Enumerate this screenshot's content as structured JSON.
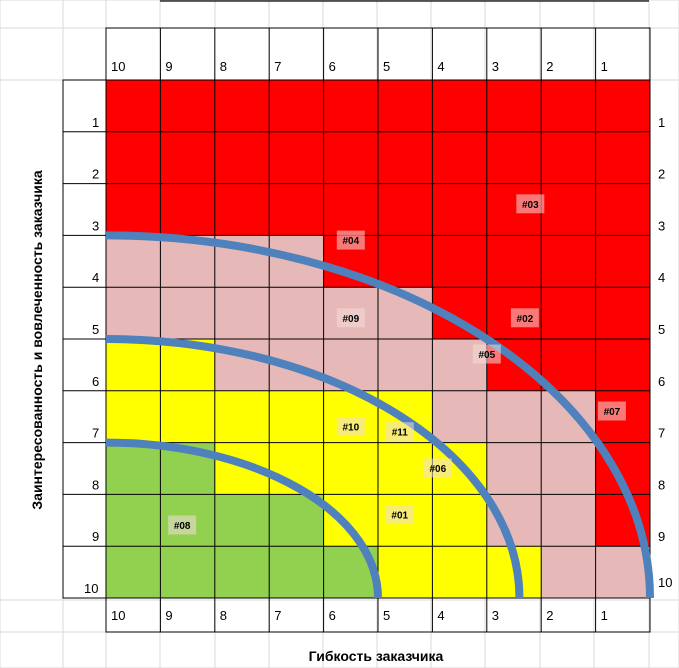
{
  "chart_data": {
    "type": "heatmap",
    "title": "",
    "xlabel": "Гибкость заказчика",
    "ylabel": "Заинтересованность и вовлеченность заказчика",
    "x_ticks": [
      "10",
      "9",
      "8",
      "7",
      "6",
      "5",
      "4",
      "3",
      "2",
      "1"
    ],
    "y_ticks": [
      "1",
      "2",
      "3",
      "4",
      "5",
      "6",
      "7",
      "8",
      "9",
      "10"
    ],
    "colors": {
      "R": "#ff0000",
      "P": "#e6b8b7",
      "Y": "#ffff00",
      "G": "#92d050",
      "arc": "#4f81bd",
      "label_bg": "#f2dcdb"
    },
    "cells": [
      "RRRRRRRRRR",
      "RRRRRRRRRR",
      "RRRRRRRRRR",
      "PPPPRRRRRR",
      "PPPPPPRRRR",
      "YYPPPPPRRR",
      "YYYYYYPPPR",
      "GGYYYYYPPR",
      "GGGGYYYPPR",
      "GGGGGYYYPP"
    ],
    "arcs": [
      {
        "radius_x": 10.0,
        "radius_y": 7.0
      },
      {
        "radius_x": 7.6,
        "radius_y": 5.0
      },
      {
        "radius_x": 5.0,
        "radius_y": 3.0
      }
    ],
    "points": [
      {
        "label": "#03",
        "x": 2.2,
        "y": 2.4
      },
      {
        "label": "#04",
        "x": 5.5,
        "y": 3.1
      },
      {
        "label": "#09",
        "x": 5.5,
        "y": 4.6
      },
      {
        "label": "#02",
        "x": 2.3,
        "y": 4.6
      },
      {
        "label": "#05",
        "x": 3.0,
        "y": 5.3
      },
      {
        "label": "#07",
        "x": 0.7,
        "y": 6.4
      },
      {
        "label": "#10",
        "x": 5.5,
        "y": 6.7
      },
      {
        "label": "#11",
        "x": 4.6,
        "y": 6.8
      },
      {
        "label": "#06",
        "x": 3.9,
        "y": 7.5
      },
      {
        "label": "#01",
        "x": 4.6,
        "y": 8.4
      },
      {
        "label": "#08",
        "x": 8.6,
        "y": 8.6
      }
    ]
  }
}
